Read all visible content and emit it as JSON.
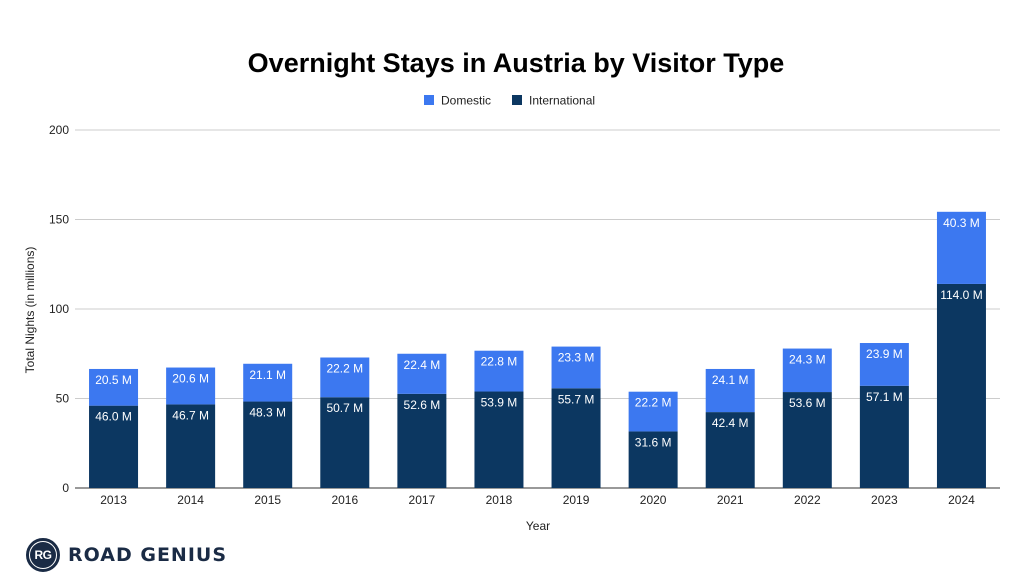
{
  "chart_data": {
    "type": "bar",
    "stacked": true,
    "title": "Overnight Stays in Austria by Visitor Type",
    "xlabel": "Year",
    "ylabel": "Total Nights (in millions)",
    "ylim": [
      0,
      200
    ],
    "yticks": [
      "0",
      "50",
      "100",
      "150",
      "200"
    ],
    "grid": true,
    "legend_position": "top-center",
    "categories": [
      "2013",
      "2014",
      "2015",
      "2016",
      "2017",
      "2018",
      "2019",
      "2020",
      "2021",
      "2022",
      "2023",
      "2024"
    ],
    "series": [
      {
        "name": "International",
        "color": "#0c3761",
        "values": [
          46.0,
          46.7,
          48.3,
          50.7,
          52.6,
          53.9,
          55.7,
          31.6,
          42.4,
          53.6,
          57.1,
          114.0
        ],
        "labels": [
          "46.0 M",
          "46.7 M",
          "48.3 M",
          "50.7 M",
          "52.6 M",
          "53.9 M",
          "55.7 M",
          "31.6 M",
          "42.4 M",
          "53.6 M",
          "57.1 M",
          "114.0 M"
        ]
      },
      {
        "name": "Domestic",
        "color": "#3c78f0",
        "values": [
          20.5,
          20.6,
          21.1,
          22.2,
          22.4,
          22.8,
          23.3,
          22.2,
          24.1,
          24.3,
          23.9,
          40.3
        ],
        "labels": [
          "20.5 M",
          "20.6 M",
          "21.1 M",
          "22.2 M",
          "22.4 M",
          "22.8 M",
          "23.3 M",
          "22.2 M",
          "24.1 M",
          "24.3 M",
          "23.9 M",
          "40.3 M"
        ]
      }
    ],
    "legend_order": [
      "Domestic",
      "International"
    ]
  },
  "branding": {
    "badge": "RG",
    "name": "ROAD GENIUS",
    "color": "#1a2b45"
  }
}
